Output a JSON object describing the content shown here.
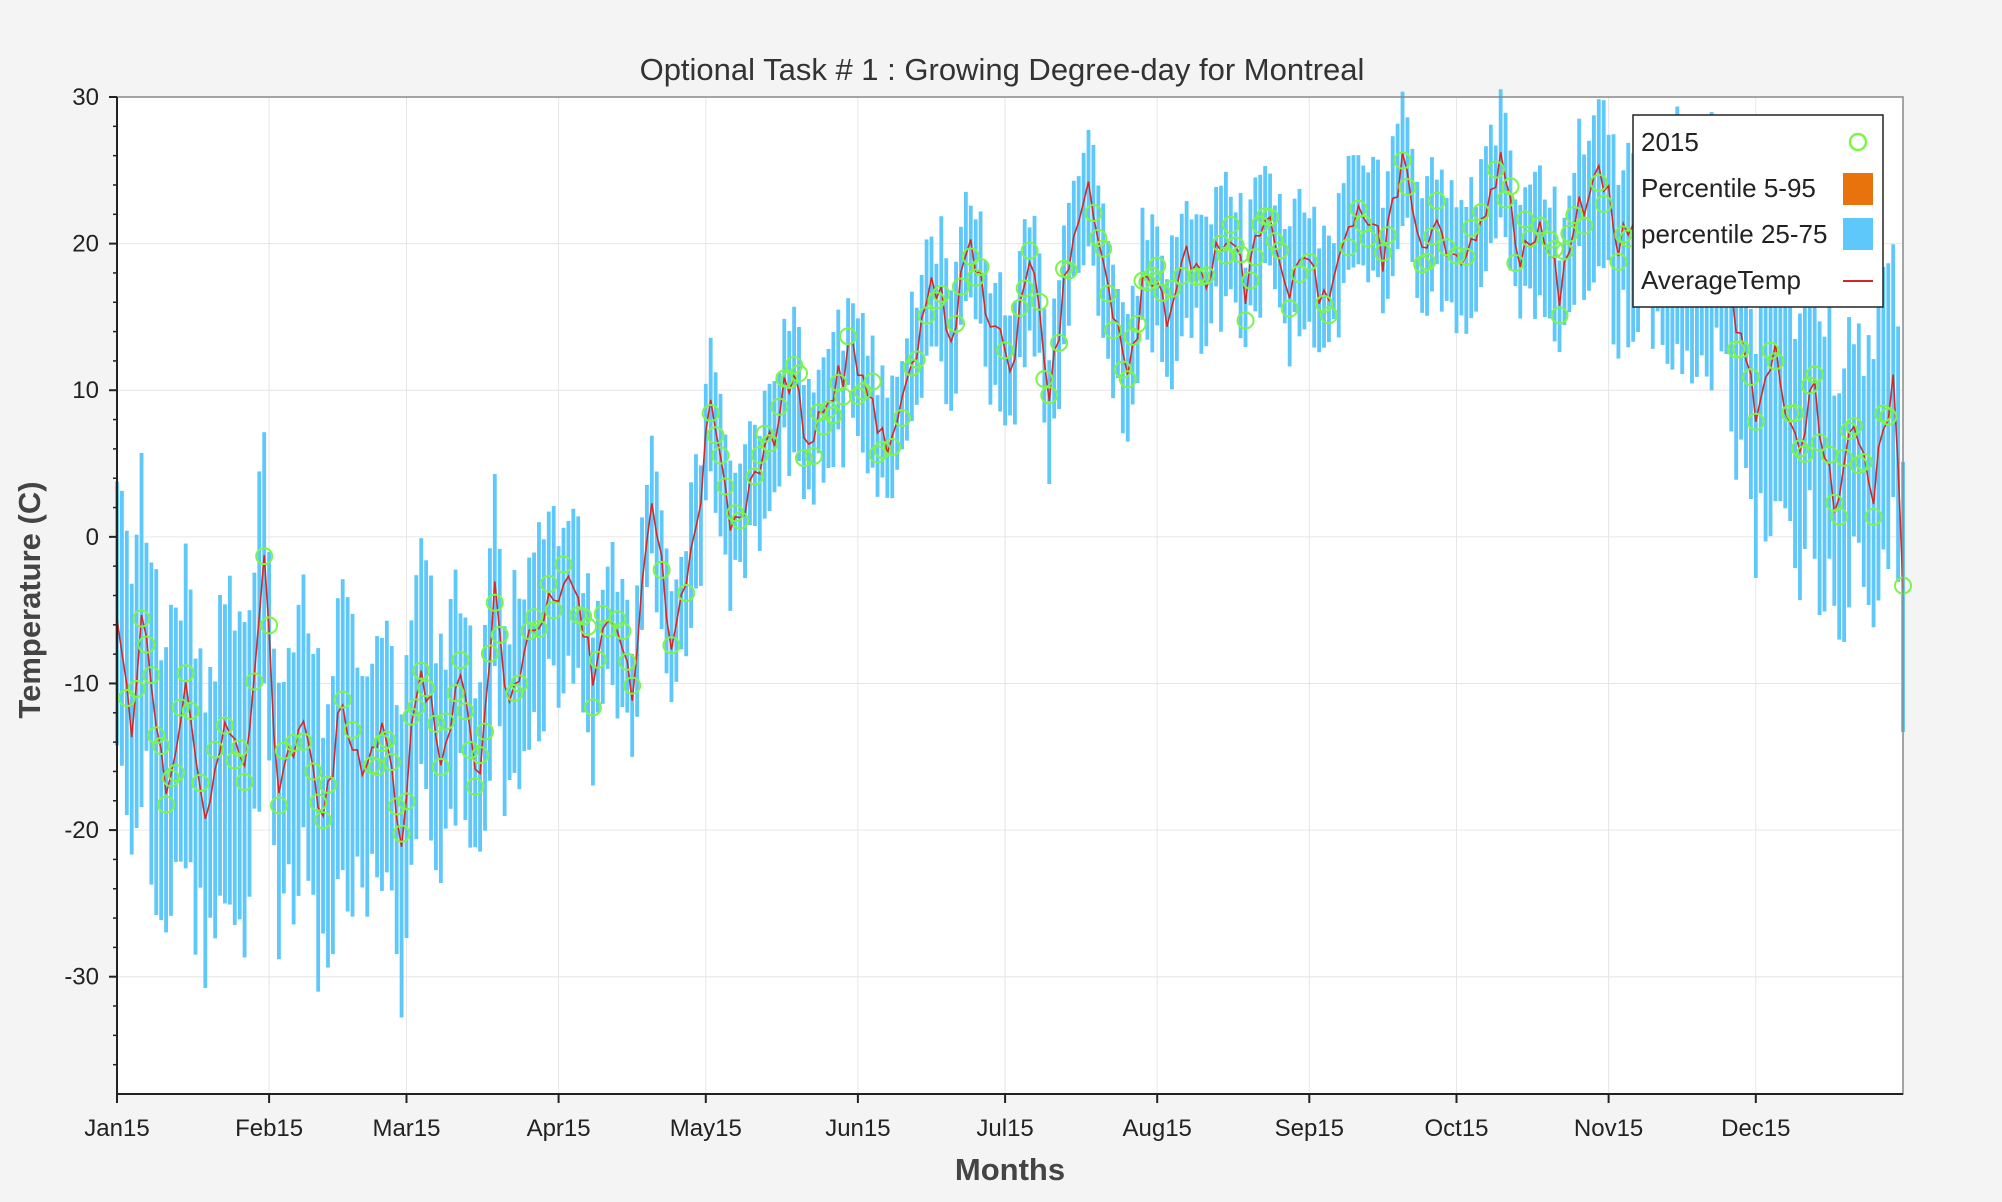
{
  "chart_data": {
    "type": "bar",
    "title": "Optional Task # 1 : Growing Degree-day for Montreal",
    "xlabel": "Months",
    "ylabel": "Temperature (C)",
    "ylim": [
      -38,
      30
    ],
    "y_ticks": [
      30,
      20,
      10,
      0,
      -10,
      -20,
      -30
    ],
    "x_tick_labels": [
      "Jan15",
      "Feb15",
      "Mar15",
      "Apr15",
      "May15",
      "Jun15",
      "Jul15",
      "Aug15",
      "Sep15",
      "Oct15",
      "Nov15",
      "Dec15"
    ],
    "x_ticks_day": [
      0,
      31,
      59,
      90,
      120,
      151,
      181,
      212,
      243,
      273,
      304,
      334
    ],
    "x_domain_days": [
      0,
      364
    ],
    "grid": true,
    "legend": {
      "placement": "top-right",
      "entries": [
        {
          "label": "2015",
          "marker": "circle",
          "color": "#7cf54b"
        },
        {
          "label": "Percentile 5-95",
          "marker": "square",
          "color": "#e8730c"
        },
        {
          "label": "percentile 25-75",
          "marker": "square",
          "color": "#5ec8fb"
        },
        {
          "label": "AverageTemp",
          "marker": "line",
          "color": "#d62728"
        }
      ]
    },
    "colors": {
      "points_2015": "#7cf54b",
      "percentile_5_95": "#e8730c",
      "percentile_25_75": "#5ec8fb",
      "average_temp": "#d62728"
    },
    "average_temp_anchors": [
      [
        0,
        -6
      ],
      [
        3,
        -13
      ],
      [
        5,
        -5
      ],
      [
        10,
        -18
      ],
      [
        14,
        -10
      ],
      [
        18,
        -20
      ],
      [
        22,
        -12
      ],
      [
        26,
        -16
      ],
      [
        30,
        -2
      ],
      [
        33,
        -18
      ],
      [
        38,
        -12
      ],
      [
        42,
        -20
      ],
      [
        46,
        -11
      ],
      [
        50,
        -17
      ],
      [
        54,
        -13
      ],
      [
        58,
        -20
      ],
      [
        62,
        -8
      ],
      [
        66,
        -16
      ],
      [
        70,
        -10
      ],
      [
        74,
        -17
      ],
      [
        77,
        -3
      ],
      [
        80,
        -12
      ],
      [
        84,
        -7
      ],
      [
        88,
        -5
      ],
      [
        92,
        -2
      ],
      [
        97,
        -9
      ],
      [
        101,
        -5
      ],
      [
        105,
        -10
      ],
      [
        109,
        2
      ],
      [
        113,
        -7
      ],
      [
        117,
        -2
      ],
      [
        121,
        9
      ],
      [
        125,
        0
      ],
      [
        129,
        3
      ],
      [
        133,
        6
      ],
      [
        137,
        11
      ],
      [
        141,
        7
      ],
      [
        145,
        9
      ],
      [
        150,
        13
      ],
      [
        154,
        9
      ],
      [
        158,
        6
      ],
      [
        162,
        11
      ],
      [
        166,
        18
      ],
      [
        170,
        14
      ],
      [
        174,
        20
      ],
      [
        178,
        15
      ],
      [
        182,
        11
      ],
      [
        186,
        19
      ],
      [
        190,
        10
      ],
      [
        194,
        19
      ],
      [
        198,
        24
      ],
      [
        202,
        17
      ],
      [
        206,
        10
      ],
      [
        210,
        19
      ],
      [
        214,
        15
      ],
      [
        218,
        20
      ],
      [
        222,
        17
      ],
      [
        226,
        21
      ],
      [
        230,
        17
      ],
      [
        234,
        22
      ],
      [
        238,
        17
      ],
      [
        242,
        19
      ],
      [
        246,
        16
      ],
      [
        250,
        21
      ],
      [
        254,
        23
      ],
      [
        258,
        19
      ],
      [
        262,
        25
      ],
      [
        266,
        20
      ],
      [
        270,
        21
      ],
      [
        274,
        18
      ],
      [
        278,
        21
      ],
      [
        282,
        25
      ],
      [
        286,
        19
      ],
      [
        290,
        21
      ],
      [
        294,
        17
      ],
      [
        298,
        22
      ],
      [
        302,
        26
      ],
      [
        306,
        20
      ],
      [
        310,
        23
      ],
      [
        314,
        19
      ],
      [
        318,
        22
      ],
      [
        322,
        17
      ],
      [
        326,
        21
      ],
      [
        330,
        14
      ],
      [
        334,
        9
      ],
      [
        338,
        12
      ],
      [
        342,
        6
      ],
      [
        346,
        10
      ],
      [
        350,
        2
      ],
      [
        354,
        8
      ],
      [
        358,
        3
      ],
      [
        362,
        11
      ],
      [
        364,
        -3
      ]
    ]
  }
}
